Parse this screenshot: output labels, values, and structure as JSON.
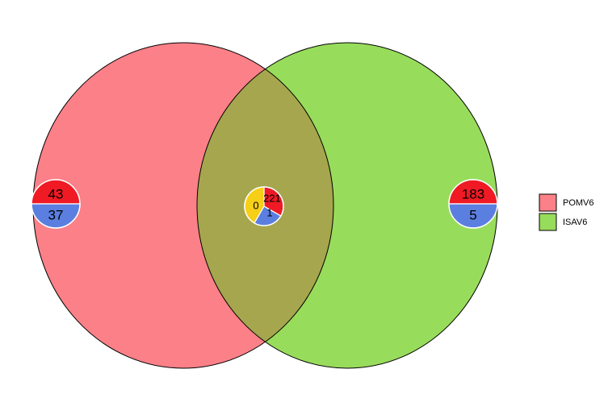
{
  "sets": [
    {
      "name": "POMV6",
      "color": "#fb8088"
    },
    {
      "name": "ISAV6",
      "color": "#98dc5c"
    }
  ],
  "overlap_color": "#a6a64e",
  "region_pies": [
    {
      "region": "POMV6 only",
      "segments": [
        {
          "value": 43,
          "color": "#ef1a24"
        },
        {
          "value": 37,
          "color": "#5b7fe0"
        }
      ]
    },
    {
      "region": "POMV6 & ISAV6",
      "segments": [
        {
          "value": 221,
          "color": "#ef1a24"
        },
        {
          "value": 1,
          "color": "#5b7fe0"
        },
        {
          "value": 0,
          "color": "#f6cf16"
        }
      ]
    },
    {
      "region": "ISAV6 only",
      "segments": [
        {
          "value": 183,
          "color": "#ef1a24"
        },
        {
          "value": 5,
          "color": "#5b7fe0"
        }
      ]
    }
  ],
  "legend": [
    "POMV6",
    "ISAV6"
  ]
}
